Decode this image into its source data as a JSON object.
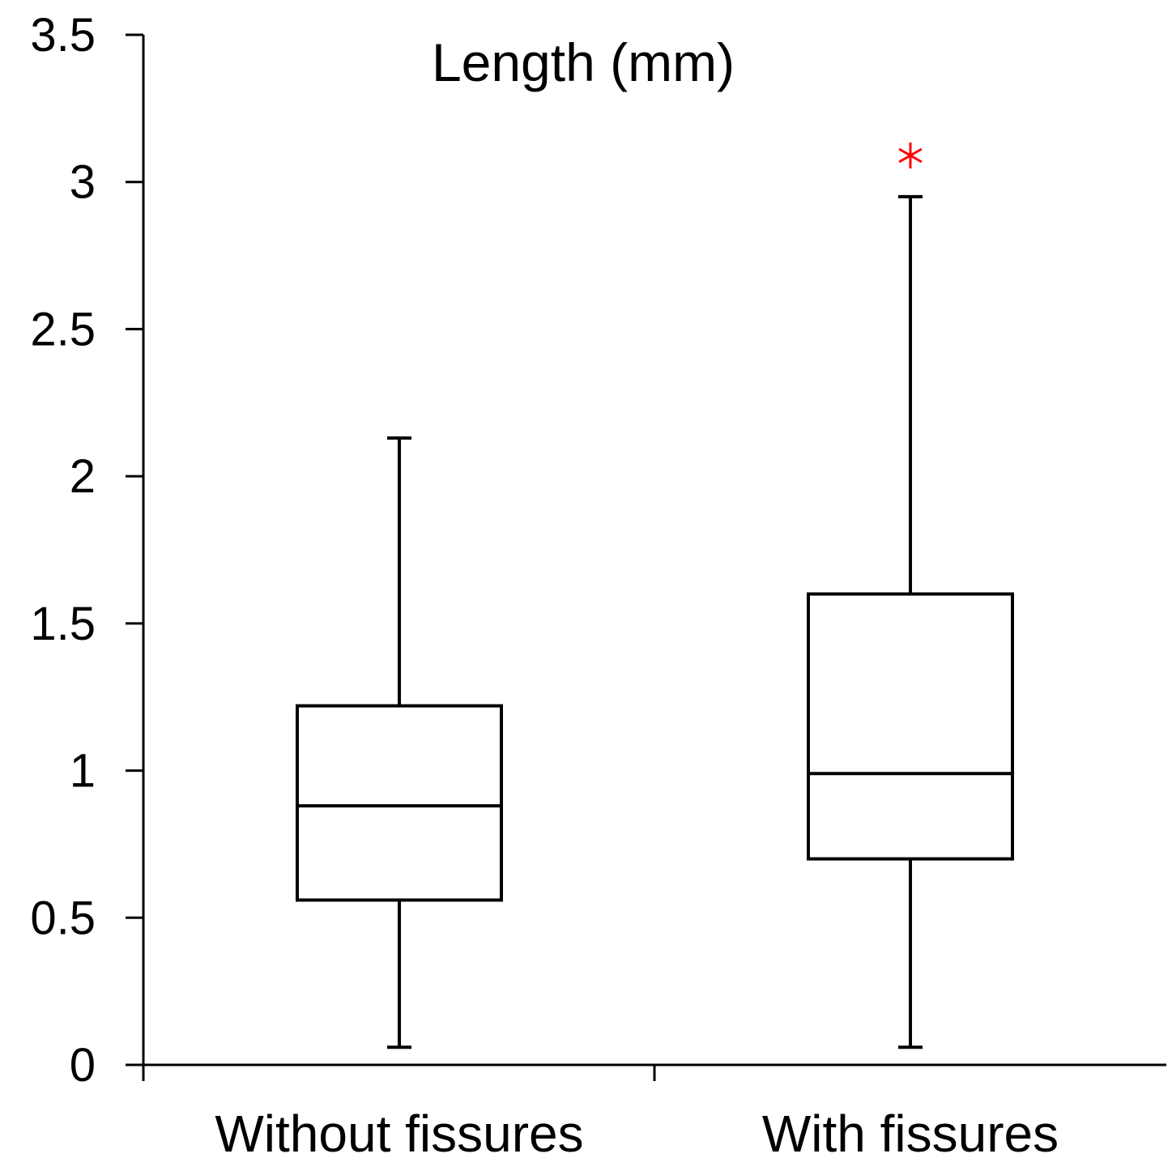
{
  "chart_data": {
    "type": "box",
    "title": "Length (mm)",
    "xlabel": "",
    "ylabel": "",
    "ylim": [
      0,
      3.5
    ],
    "yticks": [
      "0",
      "0.5",
      "1",
      "1.5",
      "2",
      "2.5",
      "3",
      "3.5"
    ],
    "grid": false,
    "categories": [
      "Without fissures",
      "With fissures"
    ],
    "boxes": [
      {
        "category": "Without fissures",
        "whisker_low": 0.06,
        "q1": 0.56,
        "median": 0.88,
        "q3": 1.22,
        "whisker_high": 2.13,
        "outliers": []
      },
      {
        "category": "With fissures",
        "whisker_low": 0.06,
        "q1": 0.7,
        "median": 0.99,
        "q3": 1.6,
        "whisker_high": 2.95,
        "outliers": [
          3.09
        ]
      }
    ],
    "colors": {
      "box": "#000000",
      "outlier": "#ff0000"
    }
  }
}
